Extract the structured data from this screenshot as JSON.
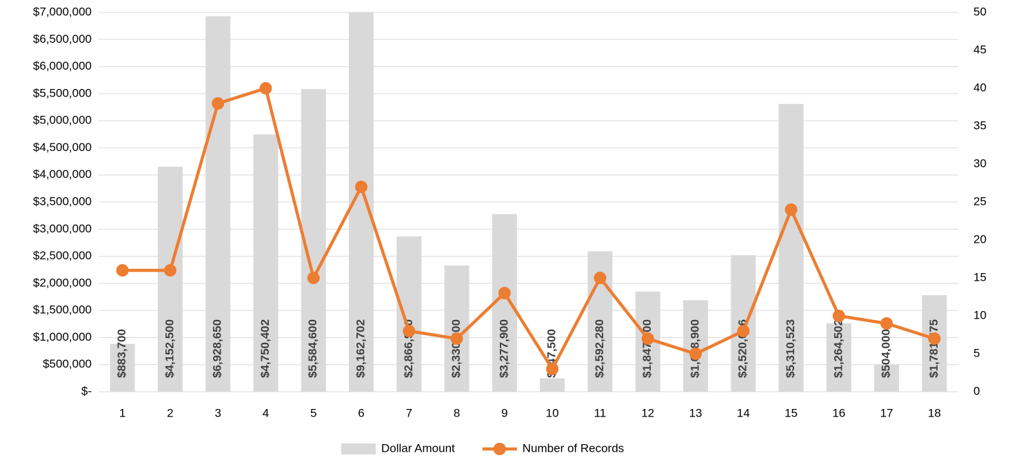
{
  "chart_data": {
    "type": "bar-line",
    "categories": [
      1,
      2,
      3,
      4,
      5,
      6,
      7,
      8,
      9,
      10,
      11,
      12,
      13,
      14,
      15,
      16,
      17,
      18
    ],
    "series": [
      {
        "name": "Dollar Amount",
        "type": "bar",
        "color": "#d9d9d9",
        "values": [
          883700,
          4152500,
          6928650,
          4750402,
          5584600,
          9162702,
          2866900,
          2330000,
          3277900,
          247500,
          2592280,
          1847000,
          1688900,
          2520096,
          5310523,
          1264502,
          504000,
          1781575
        ],
        "value_labels": [
          "$883,700",
          "$4,152,500",
          "$6,928,650",
          "$4,750,402",
          "$5,584,600",
          "$9,162,702",
          "$2,866,900",
          "$2,330,000",
          "$3,277,900",
          "$247,500",
          "$2,592,280",
          "$1,847,000",
          "$1,688,900",
          "$2,520,096",
          "$5,310,523",
          "$1,264,502",
          "$504,000",
          "$1,781,575"
        ]
      },
      {
        "name": "Number of Records",
        "type": "line",
        "axis": "y2",
        "color": "#ed7d31",
        "values": [
          16,
          16,
          38,
          40,
          15,
          27,
          8,
          7,
          13,
          3,
          15,
          7,
          5,
          8,
          24,
          10,
          9,
          7
        ]
      }
    ],
    "ylim": [
      0,
      7000000
    ],
    "yticks": [
      {
        "value": 0,
        "label": "$-"
      },
      {
        "value": 500000,
        "label": "$500,000"
      },
      {
        "value": 1000000,
        "label": "$1,000,000"
      },
      {
        "value": 1500000,
        "label": "$1,500,000"
      },
      {
        "value": 2000000,
        "label": "$2,000,000"
      },
      {
        "value": 2500000,
        "label": "$2,500,000"
      },
      {
        "value": 3000000,
        "label": "$3,000,000"
      },
      {
        "value": 3500000,
        "label": "$3,500,000"
      },
      {
        "value": 4000000,
        "label": "$4,000,000"
      },
      {
        "value": 4500000,
        "label": "$4,500,000"
      },
      {
        "value": 5000000,
        "label": "$5,000,000"
      },
      {
        "value": 5500000,
        "label": "$5,500,000"
      },
      {
        "value": 6000000,
        "label": "$6,000,000"
      },
      {
        "value": 6500000,
        "label": "$6,500,000"
      },
      {
        "value": 7000000,
        "label": "$7,000,000"
      }
    ],
    "y2lim": [
      0,
      50
    ],
    "y2ticks": [
      0,
      5,
      10,
      15,
      20,
      25,
      30,
      35,
      40,
      45,
      50
    ],
    "grid": true,
    "legend": "bottom"
  }
}
